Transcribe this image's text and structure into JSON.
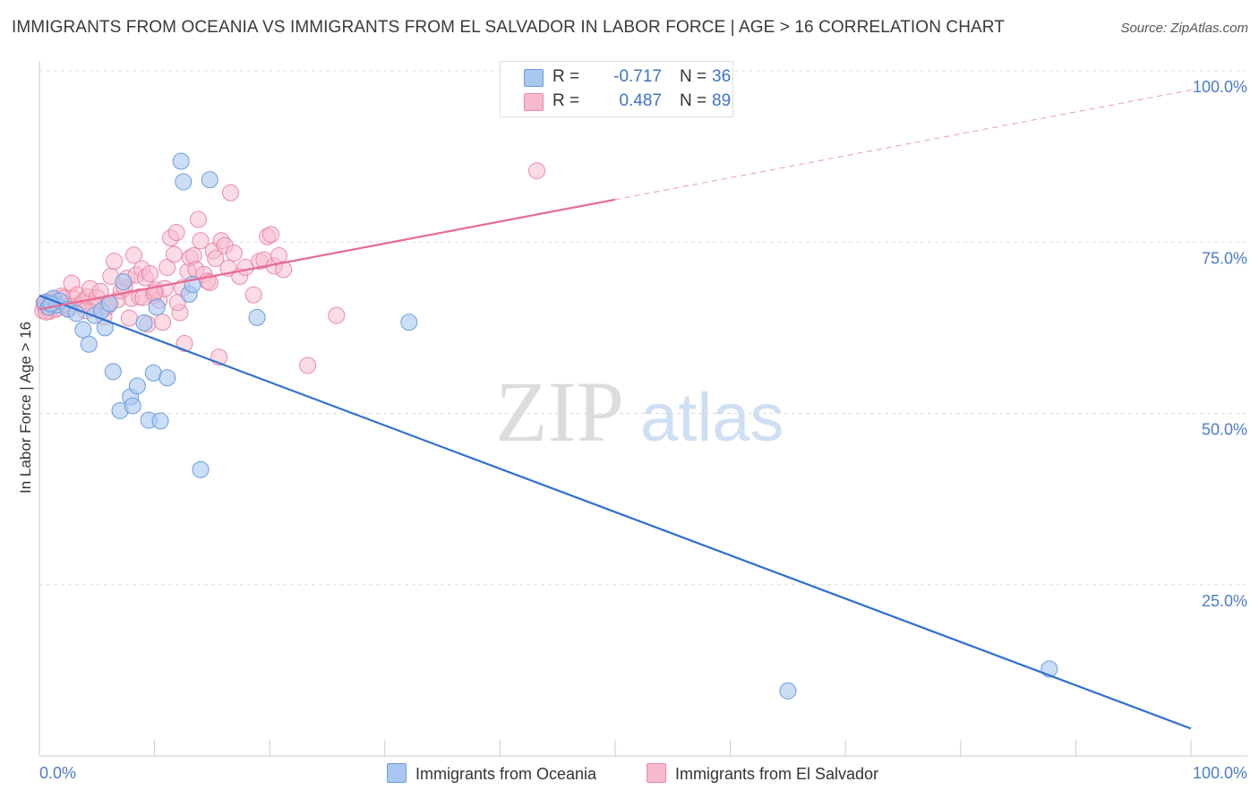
{
  "title": "IMMIGRANTS FROM OCEANIA VS IMMIGRANTS FROM EL SALVADOR IN LABOR FORCE | AGE > 16 CORRELATION CHART",
  "source": "Source: ZipAtlas.com",
  "watermark": {
    "zip": "ZIP",
    "atlas": "atlas"
  },
  "legend": {
    "r_label": "R =",
    "n_label": "N =",
    "rows": [
      {
        "r": "-0.717",
        "n": "36"
      },
      {
        "r": "0.487",
        "n": "89"
      }
    ]
  },
  "bottom_legend": [
    "Immigrants from Oceania",
    "Immigrants from El Salvador"
  ],
  "colors": {
    "oceania_fill": "#a9c8f0",
    "oceania_stroke": "#6d9be0",
    "oceania_line": "#2e6fd1",
    "salvador_fill": "#f7b9cc",
    "salvador_stroke": "#eb88a6",
    "salvador_line": "#e86a92",
    "tick_text": "#4a7cc7",
    "grid": "#dddddd"
  },
  "chart_data": {
    "type": "scatter",
    "title": "IMMIGRANTS FROM OCEANIA VS IMMIGRANTS FROM EL SALVADOR IN LABOR FORCE | AGE > 16 CORRELATION CHART",
    "xlabel": "",
    "ylabel": "In Labor Force | Age > 16",
    "xlim": [
      0,
      100
    ],
    "ylim": [
      0,
      100
    ],
    "x_tick_labels": [
      "0.0%",
      "100.0%"
    ],
    "y_ticks": [
      25,
      50,
      75,
      100
    ],
    "y_tick_labels": [
      "25.0%",
      "50.0%",
      "75.0%",
      "100.0%"
    ],
    "grid": true,
    "series": [
      {
        "name": "Immigrants from Oceania",
        "r": -0.717,
        "n": 36,
        "trend": {
          "x": [
            0,
            100
          ],
          "y": [
            67.2,
            4.0
          ],
          "dashed_from_x": null
        },
        "points": [
          [
            0.5,
            66.2
          ],
          [
            0.8,
            65.5
          ],
          [
            1.2,
            66.8
          ],
          [
            1.5,
            65.8
          ],
          [
            1.8,
            66.4
          ],
          [
            2.5,
            65.2
          ],
          [
            3.2,
            64.6
          ],
          [
            3.8,
            62.2
          ],
          [
            4.3,
            60.1
          ],
          [
            4.8,
            64.3
          ],
          [
            5.4,
            65.0
          ],
          [
            5.7,
            62.5
          ],
          [
            6.4,
            56.1
          ],
          [
            6.1,
            66.0
          ],
          [
            7.0,
            50.4
          ],
          [
            7.3,
            69.2
          ],
          [
            7.9,
            52.4
          ],
          [
            8.1,
            51.1
          ],
          [
            8.5,
            54.0
          ],
          [
            9.1,
            63.2
          ],
          [
            9.5,
            49.0
          ],
          [
            9.9,
            55.9
          ],
          [
            10.2,
            65.5
          ],
          [
            10.5,
            48.9
          ],
          [
            11.1,
            55.2
          ],
          [
            12.3,
            86.8
          ],
          [
            12.5,
            83.8
          ],
          [
            13.0,
            67.4
          ],
          [
            13.3,
            68.8
          ],
          [
            14.0,
            41.8
          ],
          [
            14.8,
            84.1
          ],
          [
            18.9,
            64.0
          ],
          [
            32.1,
            63.3
          ],
          [
            65.0,
            9.5
          ],
          [
            87.7,
            12.7
          ],
          [
            1.0,
            66.0
          ]
        ]
      },
      {
        "name": "Immigrants from El Salvador",
        "r": 0.487,
        "n": 89,
        "trend": {
          "x": [
            0,
            100
          ],
          "y": [
            65.2,
            97.2
          ],
          "dashed_from_x": 50
        },
        "points": [
          [
            0.3,
            65.0
          ],
          [
            0.5,
            65.6
          ],
          [
            0.7,
            66.3
          ],
          [
            0.9,
            64.9
          ],
          [
            1.1,
            65.9
          ],
          [
            1.3,
            66.6
          ],
          [
            1.6,
            65.4
          ],
          [
            1.9,
            67.1
          ],
          [
            2.2,
            66.0
          ],
          [
            2.5,
            65.3
          ],
          [
            2.8,
            69.0
          ],
          [
            3.0,
            66.7
          ],
          [
            3.3,
            67.3
          ],
          [
            3.6,
            65.9
          ],
          [
            3.9,
            66.4
          ],
          [
            4.2,
            67.0
          ],
          [
            4.4,
            68.2
          ],
          [
            4.7,
            65.4
          ],
          [
            5.0,
            66.9
          ],
          [
            5.3,
            67.8
          ],
          [
            5.6,
            64.1
          ],
          [
            5.9,
            65.6
          ],
          [
            6.2,
            70.0
          ],
          [
            6.5,
            72.2
          ],
          [
            6.8,
            66.6
          ],
          [
            7.1,
            67.9
          ],
          [
            7.4,
            68.3
          ],
          [
            7.6,
            69.7
          ],
          [
            7.8,
            63.9
          ],
          [
            8.0,
            66.8
          ],
          [
            8.2,
            73.1
          ],
          [
            8.4,
            70.2
          ],
          [
            8.7,
            67.0
          ],
          [
            8.9,
            71.1
          ],
          [
            9.2,
            69.8
          ],
          [
            9.4,
            63.0
          ],
          [
            9.6,
            70.4
          ],
          [
            9.9,
            67.2
          ],
          [
            10.1,
            68.0
          ],
          [
            10.4,
            66.5
          ],
          [
            10.7,
            63.3
          ],
          [
            10.9,
            68.2
          ],
          [
            11.1,
            71.3
          ],
          [
            11.4,
            75.6
          ],
          [
            11.7,
            73.2
          ],
          [
            11.9,
            76.4
          ],
          [
            12.2,
            64.7
          ],
          [
            12.4,
            68.3
          ],
          [
            12.6,
            60.2
          ],
          [
            12.9,
            70.7
          ],
          [
            13.1,
            72.7
          ],
          [
            13.4,
            73.0
          ],
          [
            13.6,
            71.0
          ],
          [
            13.8,
            78.3
          ],
          [
            14.0,
            75.2
          ],
          [
            14.3,
            70.3
          ],
          [
            14.6,
            69.3
          ],
          [
            14.8,
            69.1
          ],
          [
            15.1,
            73.7
          ],
          [
            15.3,
            72.6
          ],
          [
            15.6,
            58.2
          ],
          [
            15.8,
            75.2
          ],
          [
            16.1,
            74.5
          ],
          [
            16.4,
            71.2
          ],
          [
            16.6,
            82.2
          ],
          [
            16.9,
            73.4
          ],
          [
            17.4,
            70.0
          ],
          [
            17.9,
            71.3
          ],
          [
            18.6,
            67.3
          ],
          [
            19.1,
            72.2
          ],
          [
            19.5,
            72.4
          ],
          [
            19.8,
            75.8
          ],
          [
            20.1,
            76.1
          ],
          [
            20.4,
            71.5
          ],
          [
            20.8,
            73.0
          ],
          [
            21.2,
            71.0
          ],
          [
            23.3,
            57.0
          ],
          [
            25.8,
            64.3
          ],
          [
            43.2,
            85.4
          ],
          [
            0.4,
            66.1
          ],
          [
            0.6,
            64.8
          ],
          [
            1.4,
            65.2
          ],
          [
            2.0,
            66.8
          ],
          [
            2.6,
            65.6
          ],
          [
            4.0,
            65.0
          ],
          [
            6.0,
            66.1
          ],
          [
            9.0,
            66.9
          ],
          [
            10.0,
            67.6
          ],
          [
            12.0,
            66.2
          ]
        ]
      }
    ]
  }
}
